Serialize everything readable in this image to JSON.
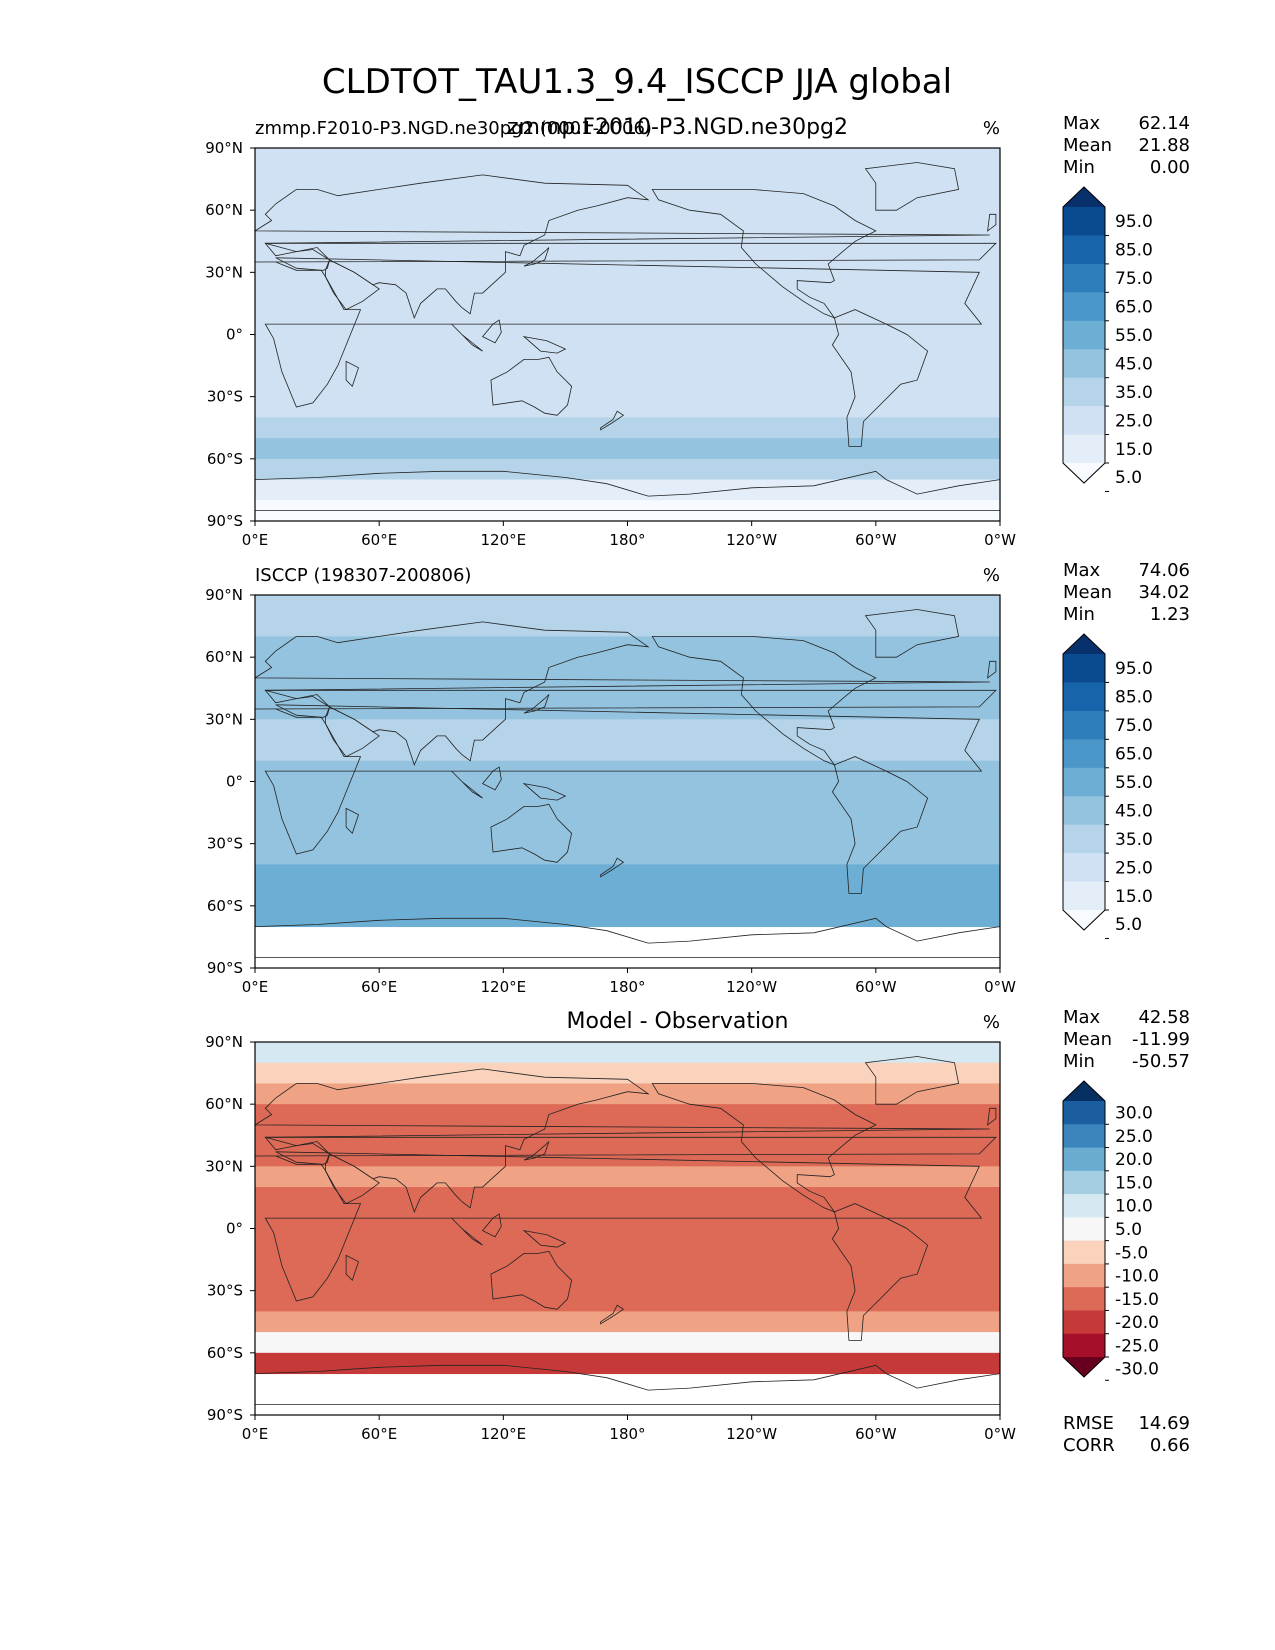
{
  "figure_title": "CLDTOT_TAU1.3_9.4_ISCCP JJA global",
  "chart_data": [
    {
      "type": "heatmap",
      "subplot": "test",
      "title_left": "zmmp.F2010-P3.NGD.ne30pg2 (0001-0006)",
      "title_center": "zmmp.F2010-P3.NGD.ne30pg2",
      "units": "%",
      "stats": [
        {
          "label": "Max",
          "value": "62.14"
        },
        {
          "label": "Mean",
          "value": "21.88"
        },
        {
          "label": "Min",
          "value": "0.00"
        }
      ],
      "colorbar_ticks": [
        "95.0",
        "85.0",
        "75.0",
        "65.0",
        "55.0",
        "45.0",
        "35.0",
        "25.0",
        "15.0",
        "5.0"
      ],
      "colors": [
        "#f7fbff",
        "#e3eef9",
        "#cfe1f2",
        "#b5d4e9",
        "#93c3df",
        "#6daed5",
        "#4b97c9",
        "#2f7ebc",
        "#1864aa",
        "#0a4a90",
        "#08306b"
      ],
      "xticks": [
        "0°E",
        "60°E",
        "120°E",
        "180°",
        "120°W",
        "60°W",
        "0°W"
      ],
      "yticks": [
        "90°N",
        "60°N",
        "30°N",
        "0°",
        "30°S",
        "60°S",
        "90°S"
      ],
      "xlim": [
        0,
        360
      ],
      "ylim": [
        -90,
        90
      ],
      "zonal_band_values": [
        {
          "lat": 85,
          "value": 22
        },
        {
          "lat": 75,
          "value": 24
        },
        {
          "lat": 65,
          "value": 22
        },
        {
          "lat": 55,
          "value": 20
        },
        {
          "lat": 45,
          "value": 20
        },
        {
          "lat": 35,
          "value": 18
        },
        {
          "lat": 25,
          "value": 16
        },
        {
          "lat": 15,
          "value": 15
        },
        {
          "lat": 5,
          "value": 18
        },
        {
          "lat": -5,
          "value": 16
        },
        {
          "lat": -15,
          "value": 18
        },
        {
          "lat": -25,
          "value": 20
        },
        {
          "lat": -35,
          "value": 22
        },
        {
          "lat": -45,
          "value": 30
        },
        {
          "lat": -55,
          "value": 38
        },
        {
          "lat": -65,
          "value": 34
        },
        {
          "lat": -75,
          "value": 12
        },
        {
          "lat": -85,
          "value": 2
        }
      ]
    },
    {
      "type": "heatmap",
      "subplot": "reference",
      "title_left": "ISCCP (198307-200806)",
      "title_center": "",
      "units": "%",
      "stats": [
        {
          "label": "Max",
          "value": "74.06"
        },
        {
          "label": "Mean",
          "value": "34.02"
        },
        {
          "label": "Min",
          "value": "1.23"
        }
      ],
      "colorbar_ticks": [
        "95.0",
        "85.0",
        "75.0",
        "65.0",
        "55.0",
        "45.0",
        "35.0",
        "25.0",
        "15.0",
        "5.0"
      ],
      "colors": [
        "#f7fbff",
        "#e3eef9",
        "#cfe1f2",
        "#b5d4e9",
        "#93c3df",
        "#6daed5",
        "#4b97c9",
        "#2f7ebc",
        "#1864aa",
        "#0a4a90",
        "#08306b"
      ],
      "xticks": [
        "0°E",
        "60°E",
        "120°E",
        "180°",
        "120°W",
        "60°W",
        "0°W"
      ],
      "yticks": [
        "90°N",
        "60°N",
        "30°N",
        "0°",
        "30°S",
        "60°S",
        "90°S"
      ],
      "xlim": [
        0,
        360
      ],
      "ylim": [
        -90,
        90
      ],
      "zonal_band_values": [
        {
          "lat": 85,
          "value": 30
        },
        {
          "lat": 75,
          "value": 34
        },
        {
          "lat": 65,
          "value": 36
        },
        {
          "lat": 55,
          "value": 38
        },
        {
          "lat": 45,
          "value": 40
        },
        {
          "lat": 35,
          "value": 36
        },
        {
          "lat": 25,
          "value": 30
        },
        {
          "lat": 15,
          "value": 34
        },
        {
          "lat": 5,
          "value": 40
        },
        {
          "lat": -5,
          "value": 38
        },
        {
          "lat": -15,
          "value": 40
        },
        {
          "lat": -25,
          "value": 42
        },
        {
          "lat": -35,
          "value": 44
        },
        {
          "lat": -45,
          "value": 46
        },
        {
          "lat": -55,
          "value": 48
        },
        {
          "lat": -65,
          "value": 52
        },
        {
          "lat": -75,
          "value": null
        },
        {
          "lat": -85,
          "value": null
        }
      ]
    },
    {
      "type": "heatmap",
      "subplot": "difference",
      "title_left": "",
      "title_center": "Model - Observation",
      "units": "%",
      "stats": [
        {
          "label": "Max",
          "value": "42.58"
        },
        {
          "label": "Mean",
          "value": "-11.99"
        },
        {
          "label": "Min",
          "value": "-50.57"
        }
      ],
      "colorbar_ticks": [
        "30.0",
        "25.0",
        "20.0",
        "15.0",
        "10.0",
        "5.0",
        "-5.0",
        "-10.0",
        "-15.0",
        "-20.0",
        "-25.0",
        "-30.0"
      ],
      "colors": [
        "#67001f",
        "#a50f2a",
        "#c53a38",
        "#dc6a56",
        "#f0a284",
        "#fbd2bc",
        "#f7f7f7",
        "#d6e8f1",
        "#a6cee3",
        "#6aabd0",
        "#3b84bc",
        "#1a5ea0",
        "#053061"
      ],
      "xticks": [
        "0°E",
        "60°E",
        "120°E",
        "180°",
        "120°W",
        "60°W",
        "0°W"
      ],
      "yticks": [
        "90°N",
        "60°N",
        "30°N",
        "0°",
        "30°S",
        "60°S",
        "90°S"
      ],
      "xlim": [
        0,
        360
      ],
      "ylim": [
        -90,
        90
      ],
      "zonal_band_values": [
        {
          "lat": 85,
          "value": 8
        },
        {
          "lat": 75,
          "value": -10
        },
        {
          "lat": 65,
          "value": -14
        },
        {
          "lat": 55,
          "value": -16
        },
        {
          "lat": 45,
          "value": -18
        },
        {
          "lat": 35,
          "value": -16
        },
        {
          "lat": 25,
          "value": -14
        },
        {
          "lat": 15,
          "value": -16
        },
        {
          "lat": 5,
          "value": -20
        },
        {
          "lat": -5,
          "value": -20
        },
        {
          "lat": -15,
          "value": -20
        },
        {
          "lat": -25,
          "value": -20
        },
        {
          "lat": -35,
          "value": -18
        },
        {
          "lat": -45,
          "value": -14
        },
        {
          "lat": -55,
          "value": -4
        },
        {
          "lat": -65,
          "value": -22
        },
        {
          "lat": -75,
          "value": null
        },
        {
          "lat": -85,
          "value": null
        }
      ],
      "metrics": [
        {
          "label": "RMSE",
          "value": "14.69"
        },
        {
          "label": "CORR",
          "value": "0.66"
        }
      ]
    }
  ]
}
